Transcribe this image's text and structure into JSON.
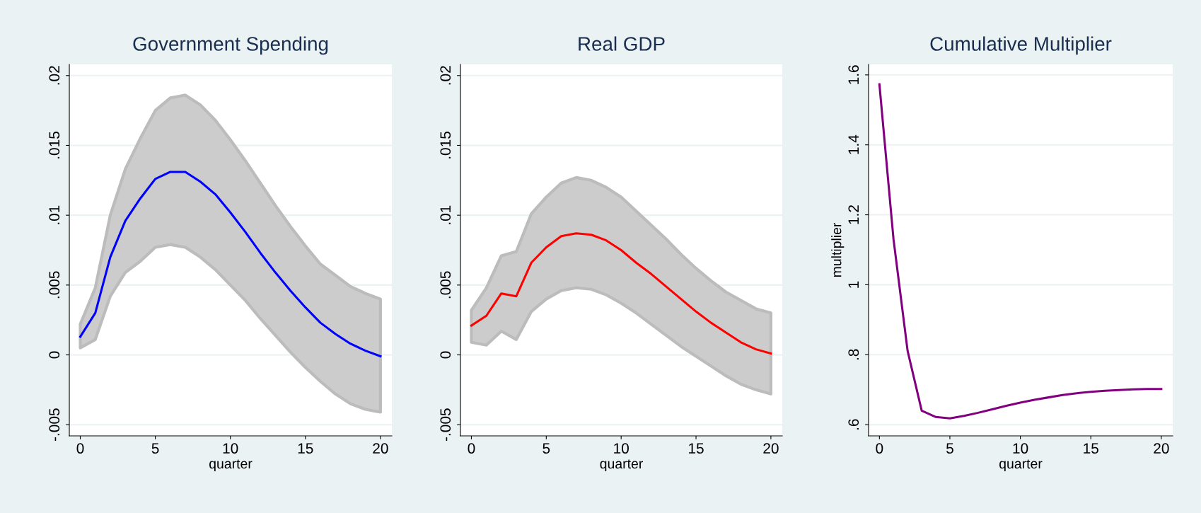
{
  "chart_data": [
    {
      "type": "line",
      "title": "Government Spending",
      "xlabel": "quarter",
      "x": [
        0,
        1,
        2,
        3,
        4,
        5,
        6,
        7,
        8,
        9,
        10,
        11,
        12,
        13,
        14,
        15,
        16,
        17,
        18,
        19,
        20
      ],
      "xlim": [
        -0.73,
        20.76
      ],
      "xticks": [
        0,
        5,
        10,
        15,
        20
      ],
      "ylim": [
        -0.0058,
        0.0208
      ],
      "yticks": [
        {
          "value": -0.005,
          "label": "-.005"
        },
        0,
        {
          "value": 0.005,
          "label": ".005"
        },
        {
          "value": 0.01,
          "label": ".01"
        },
        {
          "value": 0.015,
          "label": ".015"
        },
        {
          "value": 0.02,
          "label": ".02"
        }
      ],
      "grid": "y",
      "marker": "none",
      "line_style": "solid",
      "series": [
        {
          "color": "#0000ff",
          "values": [
            0.0013,
            0.003,
            0.007,
            0.0096,
            0.0112,
            0.0126,
            0.0131,
            0.0131,
            0.0124,
            0.0115,
            0.0102,
            0.0088,
            0.0073,
            0.0059,
            0.0046,
            0.0034,
            0.0023,
            0.0015,
            0.0008,
            0.0003,
            -0.0001
          ],
          "lower": [
            0.0005,
            0.0011,
            0.0042,
            0.0059,
            0.0067,
            0.0077,
            0.0079,
            0.0077,
            0.007,
            0.0061,
            0.005,
            0.0039,
            0.0026,
            0.0014,
            0.0002,
            -0.0009,
            -0.0019,
            -0.0028,
            -0.0035,
            -0.0039,
            -0.0041
          ],
          "upper": [
            0.0022,
            0.0048,
            0.01,
            0.0133,
            0.0155,
            0.0175,
            0.0184,
            0.0186,
            0.0179,
            0.0168,
            0.0154,
            0.0139,
            0.0123,
            0.0107,
            0.0092,
            0.0078,
            0.0065,
            0.0057,
            0.0049,
            0.0044,
            0.004
          ]
        }
      ]
    },
    {
      "type": "line",
      "title": "Real GDP",
      "xlabel": "quarter",
      "x": [
        0,
        1,
        2,
        3,
        4,
        5,
        6,
        7,
        8,
        9,
        10,
        11,
        12,
        13,
        14,
        15,
        16,
        17,
        18,
        19,
        20
      ],
      "xlim": [
        -0.73,
        20.76
      ],
      "xticks": [
        0,
        5,
        10,
        15,
        20
      ],
      "ylim": [
        -0.0058,
        0.0208
      ],
      "yticks": [
        {
          "value": -0.005,
          "label": "-.005"
        },
        0,
        {
          "value": 0.005,
          "label": ".005"
        },
        {
          "value": 0.01,
          "label": ".01"
        },
        {
          "value": 0.015,
          "label": ".015"
        },
        {
          "value": 0.02,
          "label": ".02"
        }
      ],
      "grid": "y",
      "marker": "none",
      "line_style": "solid",
      "series": [
        {
          "color": "#ff0000",
          "values": [
            0.0021,
            0.0028,
            0.0044,
            0.0042,
            0.0066,
            0.0077,
            0.0085,
            0.0087,
            0.0086,
            0.0082,
            0.0075,
            0.0066,
            0.0058,
            0.0049,
            0.004,
            0.0031,
            0.0023,
            0.0016,
            0.0009,
            0.0004,
            0.0001
          ],
          "lower": [
            0.0009,
            0.0007,
            0.0017,
            0.0011,
            0.0031,
            0.004,
            0.0046,
            0.0048,
            0.0047,
            0.0043,
            0.0037,
            0.003,
            0.0022,
            0.0014,
            0.0006,
            -0.0001,
            -0.0008,
            -0.0015,
            -0.0021,
            -0.0025,
            -0.0028
          ],
          "upper": [
            0.0032,
            0.0048,
            0.0071,
            0.0074,
            0.0101,
            0.0113,
            0.0123,
            0.0127,
            0.0125,
            0.012,
            0.0113,
            0.0103,
            0.0093,
            0.0083,
            0.0072,
            0.0062,
            0.0053,
            0.0045,
            0.0039,
            0.0033,
            0.003
          ]
        }
      ]
    },
    {
      "type": "line",
      "title": "Cumulative Multiplier",
      "xlabel": "quarter",
      "ylabel": "multiplier",
      "x": [
        0,
        1,
        2,
        3,
        4,
        5,
        6,
        7,
        8,
        9,
        10,
        11,
        12,
        13,
        14,
        15,
        16,
        17,
        18,
        19,
        20
      ],
      "xlim": [
        -0.77,
        20.81
      ],
      "xticks": [
        0,
        5,
        10,
        15,
        20
      ],
      "ylim": [
        0.568,
        1.63
      ],
      "yticks": [
        {
          "value": 0.6,
          "label": ".6"
        },
        {
          "value": 0.8,
          "label": ".8"
        },
        1,
        1.2,
        1.4,
        1.6
      ],
      "grid": "y",
      "marker": "none",
      "line_style": "solid",
      "series": [
        {
          "color": "#800080",
          "values": [
            1.573,
            1.13,
            0.811,
            0.64,
            0.622,
            0.618,
            0.625,
            0.634,
            0.644,
            0.654,
            0.663,
            0.671,
            0.678,
            0.685,
            0.69,
            0.694,
            0.697,
            0.699,
            0.701,
            0.702,
            0.702
          ]
        }
      ]
    }
  ]
}
